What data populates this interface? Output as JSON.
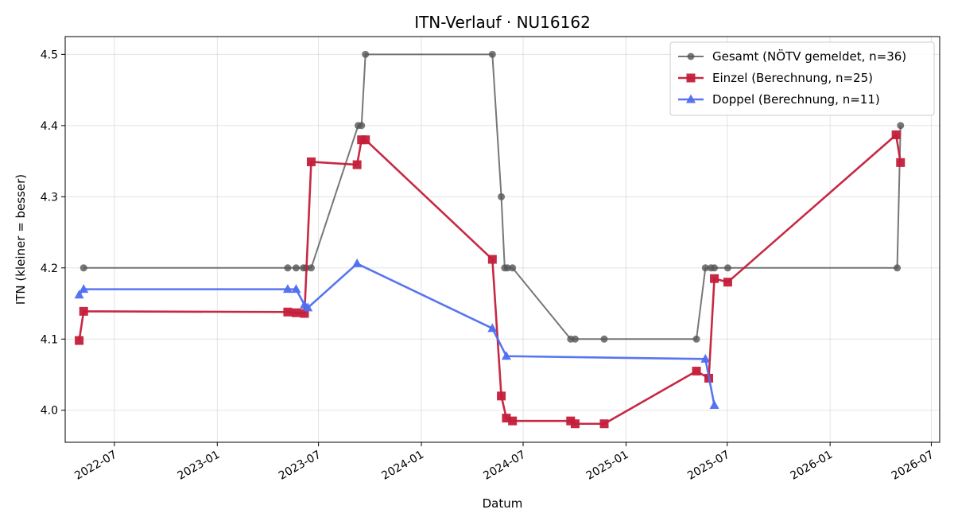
{
  "chart_data": {
    "type": "line",
    "title": "ITN-Verlauf · NU16162",
    "xlabel": "Datum",
    "ylabel": "ITN  (kleiner = besser)",
    "x_type": "date",
    "xlim": [
      "2022-04-04",
      "2026-07-16"
    ],
    "ylim": [
      3.955,
      4.525
    ],
    "x_ticks": [
      "2022-07",
      "2023-01",
      "2023-07",
      "2024-01",
      "2024-07",
      "2025-01",
      "2025-07",
      "2026-01",
      "2026-07"
    ],
    "y_ticks": [
      4.0,
      4.1,
      4.2,
      4.3,
      4.4,
      4.5
    ],
    "grid": true,
    "legend_position": "top-right",
    "series": [
      {
        "name": "Gesamt (NÖTV gemeldet, n=36)",
        "color": "#555555",
        "marker": "circle",
        "points": [
          [
            "2022-05-07",
            4.2
          ],
          [
            "2023-05-07",
            4.2
          ],
          [
            "2023-05-22",
            4.2
          ],
          [
            "2023-06-04",
            4.2
          ],
          [
            "2023-06-09",
            4.2
          ],
          [
            "2023-06-18",
            4.2
          ],
          [
            "2023-09-10",
            4.4
          ],
          [
            "2023-09-16",
            4.4
          ],
          [
            "2023-09-23",
            4.5
          ],
          [
            "2024-05-07",
            4.5
          ],
          [
            "2024-05-23",
            4.3
          ],
          [
            "2024-05-29",
            4.2
          ],
          [
            "2024-06-03",
            4.2
          ],
          [
            "2024-06-12",
            4.2
          ],
          [
            "2024-09-24",
            4.1
          ],
          [
            "2024-10-02",
            4.1
          ],
          [
            "2024-11-23",
            4.1
          ],
          [
            "2025-05-07",
            4.1
          ],
          [
            "2025-05-23",
            4.2
          ],
          [
            "2025-06-02",
            4.2
          ],
          [
            "2025-06-08",
            4.2
          ],
          [
            "2025-07-02",
            4.2
          ],
          [
            "2026-05-01",
            4.2
          ],
          [
            "2026-05-07",
            4.4
          ]
        ]
      },
      {
        "name": "Einzel (Berechnung, n=25)",
        "color": "#c41e3a",
        "marker": "square",
        "points": [
          [
            "2022-04-29",
            4.098
          ],
          [
            "2022-05-07",
            4.139
          ],
          [
            "2023-05-07",
            4.138
          ],
          [
            "2023-05-22",
            4.137
          ],
          [
            "2023-06-06",
            4.136
          ],
          [
            "2023-06-18",
            4.349
          ],
          [
            "2023-09-08",
            4.345
          ],
          [
            "2023-09-16",
            4.38
          ],
          [
            "2023-09-23",
            4.38
          ],
          [
            "2024-05-07",
            4.212
          ],
          [
            "2024-05-23",
            4.02
          ],
          [
            "2024-06-01",
            3.989
          ],
          [
            "2024-06-12",
            3.985
          ],
          [
            "2024-09-24",
            3.985
          ],
          [
            "2024-10-02",
            3.981
          ],
          [
            "2024-11-23",
            3.981
          ],
          [
            "2025-05-07",
            4.055
          ],
          [
            "2025-05-29",
            4.045
          ],
          [
            "2025-06-08",
            4.185
          ],
          [
            "2025-07-02",
            4.18
          ],
          [
            "2026-04-29",
            4.387
          ],
          [
            "2026-05-07",
            4.348
          ]
        ]
      },
      {
        "name": "Doppel (Berechnung, n=11)",
        "color": "#4f6ef0",
        "marker": "triangle",
        "points": [
          [
            "2022-04-29",
            4.162
          ],
          [
            "2022-05-07",
            4.17
          ],
          [
            "2023-05-07",
            4.17
          ],
          [
            "2023-05-22",
            4.17
          ],
          [
            "2023-06-06",
            4.148
          ],
          [
            "2023-06-12",
            4.144
          ],
          [
            "2023-09-08",
            4.206
          ],
          [
            "2024-05-07",
            4.115
          ],
          [
            "2024-06-01",
            4.076
          ],
          [
            "2025-05-23",
            4.072
          ],
          [
            "2025-06-08",
            4.007
          ]
        ]
      }
    ]
  }
}
